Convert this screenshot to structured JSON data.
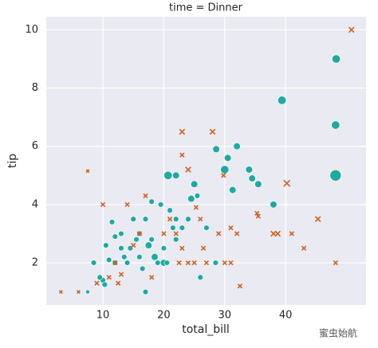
{
  "chart_data": {
    "type": "scatter",
    "title": "time = Dinner",
    "x_label": "total_bill",
    "y_label": "tip",
    "xlim": [
      0.7,
      53.2
    ],
    "ylim": [
      0.55,
      10.45
    ],
    "xticks": [
      10,
      20,
      30,
      40
    ],
    "yticks": [
      2,
      4,
      6,
      8,
      10
    ],
    "grid": true,
    "series": [
      {
        "color": "#1ea9a2",
        "marker": "circle",
        "x": [
          48.3,
          39.4,
          48.2,
          48.2,
          28.6,
          32.0,
          30.0,
          30.5,
          34.0,
          34.5,
          35.5,
          31.3,
          20.7,
          25.0,
          22.0,
          24.5,
          38.0,
          19.5,
          18.0,
          21.0,
          22.0,
          15.0,
          17.0,
          13.0,
          12.0,
          14.5,
          16.0,
          17.5,
          18.5,
          20.0,
          19.0,
          20.0,
          22.0,
          24.0,
          23.0,
          27.0,
          28.5,
          26.0,
          17.0,
          16.5,
          14.0,
          13.5,
          12.0,
          11.0,
          10.0,
          10.3,
          9.5,
          8.5,
          7.5,
          10.5,
          15.5,
          16.0,
          18.0,
          21.5,
          25.5,
          20.5,
          13.0,
          11.5
        ],
        "values": [
          9.0,
          7.58,
          6.73,
          5.0,
          5.9,
          6.0,
          5.2,
          5.6,
          5.2,
          4.9,
          4.7,
          4.5,
          5.0,
          4.7,
          5.0,
          4.2,
          4.0,
          4.0,
          4.1,
          3.8,
          3.5,
          3.5,
          3.5,
          3.0,
          2.9,
          2.5,
          3.0,
          2.6,
          2.2,
          2.5,
          2.0,
          2.0,
          2.8,
          3.5,
          3.2,
          3.2,
          2.0,
          1.5,
          1.0,
          1.8,
          2.0,
          2.2,
          2.0,
          2.1,
          1.4,
          1.25,
          1.5,
          2.0,
          1.0,
          2.6,
          2.8,
          2.2,
          2.8,
          3.2,
          4.3,
          2.0,
          2.5,
          3.4
        ],
        "sizes": [
          4,
          4,
          4,
          6,
          3,
          3,
          4,
          3,
          3,
          3,
          3,
          3,
          4,
          3,
          3,
          3,
          3,
          2,
          2,
          2,
          2,
          2,
          2,
          2,
          2,
          2,
          2,
          3,
          3,
          2,
          2,
          3,
          2,
          2,
          2,
          2,
          2,
          2,
          2,
          2,
          2,
          2,
          2,
          2,
          2,
          2,
          2,
          2,
          1,
          2,
          2,
          2,
          2,
          2,
          2,
          2,
          2,
          2
        ]
      },
      {
        "color": "#d2601c",
        "marker": "x",
        "x": [
          50.8,
          28.0,
          23.0,
          7.5,
          23.0,
          24.0,
          40.2,
          29.8,
          35.3,
          35.5,
          45.3,
          38.0,
          38.7,
          41.0,
          43.0,
          48.2,
          31.0,
          32.0,
          29.0,
          30.0,
          31.0,
          32.5,
          27.0,
          25.0,
          24.0,
          23.0,
          22.0,
          21.0,
          26.0,
          26.5,
          10.0,
          14.0,
          17.0,
          16.0,
          15.0,
          12.0,
          11.0,
          13.0,
          9.0,
          6.0,
          3.1,
          12.5,
          18.0,
          20.0,
          25.3,
          22.5
        ],
        "values": [
          10.0,
          6.5,
          6.5,
          5.15,
          5.7,
          5.2,
          4.73,
          5.0,
          3.7,
          3.6,
          3.5,
          3.0,
          3.0,
          3.0,
          2.5,
          2.0,
          3.2,
          3.0,
          3.0,
          2.0,
          2.0,
          1.2,
          2.0,
          2.0,
          2.0,
          2.5,
          3.0,
          3.5,
          3.5,
          2.5,
          4.0,
          4.0,
          4.3,
          3.0,
          2.6,
          2.0,
          1.5,
          1.6,
          1.3,
          1.0,
          1.0,
          1.3,
          1.5,
          3.0,
          3.9,
          2.0
        ],
        "sizes": [
          3,
          3,
          3,
          1,
          2,
          3,
          4,
          2,
          2,
          2,
          3,
          3,
          3,
          2,
          2,
          2,
          2,
          2,
          2,
          2,
          2,
          2,
          2,
          2,
          2,
          2,
          2,
          2,
          2,
          2,
          2,
          2,
          2,
          2,
          2,
          2,
          2,
          2,
          2,
          1,
          1,
          2,
          2,
          2,
          2,
          2
        ]
      }
    ]
  },
  "watermark": "蜜虫始航"
}
